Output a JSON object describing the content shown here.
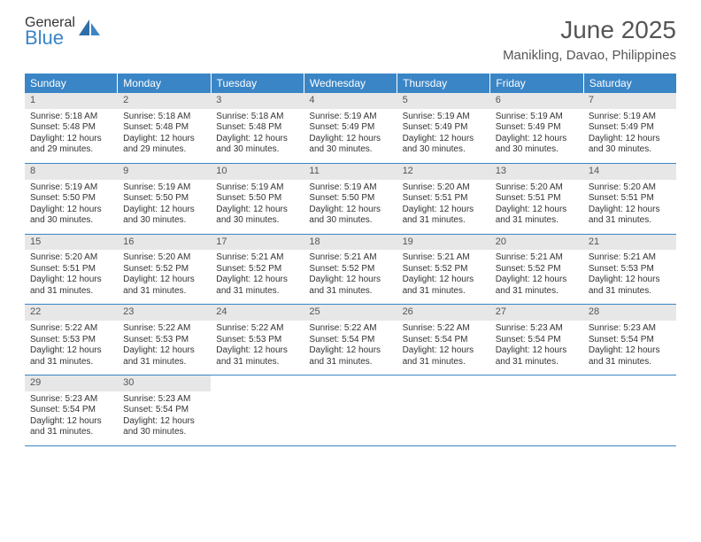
{
  "logo": {
    "general": "General",
    "blue": "Blue"
  },
  "title": "June 2025",
  "location": "Manikling, Davao, Philippines",
  "colors": {
    "header_bg": "#3a85c6",
    "header_text": "#ffffff",
    "daynum_bg": "#e7e7e7",
    "body_text": "#333333",
    "title_text": "#555555"
  },
  "dow": [
    "Sunday",
    "Monday",
    "Tuesday",
    "Wednesday",
    "Thursday",
    "Friday",
    "Saturday"
  ],
  "days": [
    {
      "n": "1",
      "sr": "5:18 AM",
      "ss": "5:48 PM",
      "dl": "12 hours and 29 minutes."
    },
    {
      "n": "2",
      "sr": "5:18 AM",
      "ss": "5:48 PM",
      "dl": "12 hours and 29 minutes."
    },
    {
      "n": "3",
      "sr": "5:18 AM",
      "ss": "5:48 PM",
      "dl": "12 hours and 30 minutes."
    },
    {
      "n": "4",
      "sr": "5:19 AM",
      "ss": "5:49 PM",
      "dl": "12 hours and 30 minutes."
    },
    {
      "n": "5",
      "sr": "5:19 AM",
      "ss": "5:49 PM",
      "dl": "12 hours and 30 minutes."
    },
    {
      "n": "6",
      "sr": "5:19 AM",
      "ss": "5:49 PM",
      "dl": "12 hours and 30 minutes."
    },
    {
      "n": "7",
      "sr": "5:19 AM",
      "ss": "5:49 PM",
      "dl": "12 hours and 30 minutes."
    },
    {
      "n": "8",
      "sr": "5:19 AM",
      "ss": "5:50 PM",
      "dl": "12 hours and 30 minutes."
    },
    {
      "n": "9",
      "sr": "5:19 AM",
      "ss": "5:50 PM",
      "dl": "12 hours and 30 minutes."
    },
    {
      "n": "10",
      "sr": "5:19 AM",
      "ss": "5:50 PM",
      "dl": "12 hours and 30 minutes."
    },
    {
      "n": "11",
      "sr": "5:19 AM",
      "ss": "5:50 PM",
      "dl": "12 hours and 30 minutes."
    },
    {
      "n": "12",
      "sr": "5:20 AM",
      "ss": "5:51 PM",
      "dl": "12 hours and 31 minutes."
    },
    {
      "n": "13",
      "sr": "5:20 AM",
      "ss": "5:51 PM",
      "dl": "12 hours and 31 minutes."
    },
    {
      "n": "14",
      "sr": "5:20 AM",
      "ss": "5:51 PM",
      "dl": "12 hours and 31 minutes."
    },
    {
      "n": "15",
      "sr": "5:20 AM",
      "ss": "5:51 PM",
      "dl": "12 hours and 31 minutes."
    },
    {
      "n": "16",
      "sr": "5:20 AM",
      "ss": "5:52 PM",
      "dl": "12 hours and 31 minutes."
    },
    {
      "n": "17",
      "sr": "5:21 AM",
      "ss": "5:52 PM",
      "dl": "12 hours and 31 minutes."
    },
    {
      "n": "18",
      "sr": "5:21 AM",
      "ss": "5:52 PM",
      "dl": "12 hours and 31 minutes."
    },
    {
      "n": "19",
      "sr": "5:21 AM",
      "ss": "5:52 PM",
      "dl": "12 hours and 31 minutes."
    },
    {
      "n": "20",
      "sr": "5:21 AM",
      "ss": "5:52 PM",
      "dl": "12 hours and 31 minutes."
    },
    {
      "n": "21",
      "sr": "5:21 AM",
      "ss": "5:53 PM",
      "dl": "12 hours and 31 minutes."
    },
    {
      "n": "22",
      "sr": "5:22 AM",
      "ss": "5:53 PM",
      "dl": "12 hours and 31 minutes."
    },
    {
      "n": "23",
      "sr": "5:22 AM",
      "ss": "5:53 PM",
      "dl": "12 hours and 31 minutes."
    },
    {
      "n": "24",
      "sr": "5:22 AM",
      "ss": "5:53 PM",
      "dl": "12 hours and 31 minutes."
    },
    {
      "n": "25",
      "sr": "5:22 AM",
      "ss": "5:54 PM",
      "dl": "12 hours and 31 minutes."
    },
    {
      "n": "26",
      "sr": "5:22 AM",
      "ss": "5:54 PM",
      "dl": "12 hours and 31 minutes."
    },
    {
      "n": "27",
      "sr": "5:23 AM",
      "ss": "5:54 PM",
      "dl": "12 hours and 31 minutes."
    },
    {
      "n": "28",
      "sr": "5:23 AM",
      "ss": "5:54 PM",
      "dl": "12 hours and 31 minutes."
    },
    {
      "n": "29",
      "sr": "5:23 AM",
      "ss": "5:54 PM",
      "dl": "12 hours and 31 minutes."
    },
    {
      "n": "30",
      "sr": "5:23 AM",
      "ss": "5:54 PM",
      "dl": "12 hours and 30 minutes."
    }
  ],
  "labels": {
    "sunrise": "Sunrise:",
    "sunset": "Sunset:",
    "daylight": "Daylight:"
  }
}
